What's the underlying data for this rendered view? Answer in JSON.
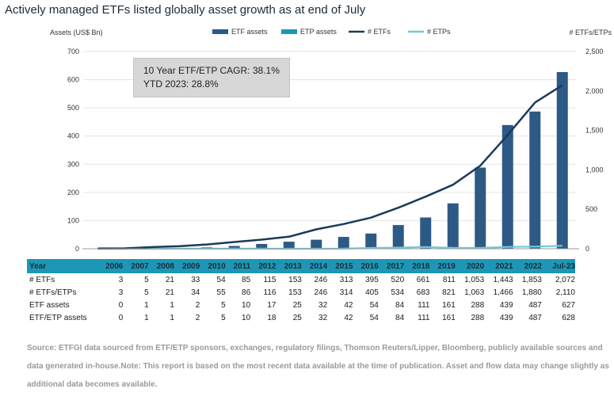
{
  "title": "Actively managed ETFs listed globally asset growth as at end of July",
  "cagr_box": {
    "line1": "10 Year ETF/ETP CAGR: 38.1%",
    "line2": "YTD 2023: 28.8%"
  },
  "chart_data": {
    "type": "bar",
    "categories": [
      "2006",
      "2007",
      "2008",
      "2009",
      "2010",
      "2011",
      "2012",
      "2013",
      "2014",
      "2015",
      "2016",
      "2017",
      "2018",
      "2019",
      "2020",
      "2021",
      "2022",
      "Jul-23"
    ],
    "ylabel_left": "Assets (US$ Bn)",
    "ylabel_right": "# ETFs/ETPs",
    "ylim_left": [
      0,
      700
    ],
    "yticks_left": [
      0,
      100,
      200,
      300,
      400,
      500,
      600,
      700
    ],
    "ylim_right": [
      0,
      2500
    ],
    "yticks_right": [
      0,
      500,
      1000,
      1500,
      2000,
      2500
    ],
    "ytick_labels_right": [
      "0",
      "500",
      "1,000",
      "1,500",
      "2,000",
      "2,500"
    ],
    "grid": true,
    "legend_position": "top",
    "series": [
      {
        "name": "ETF assets",
        "kind": "bar",
        "axis": "left",
        "color": "#2d5986",
        "values": [
          0,
          1,
          1,
          2,
          5,
          10,
          17,
          25,
          32,
          42,
          54,
          84,
          111,
          161,
          288,
          439,
          487,
          627
        ]
      },
      {
        "name": "ETP assets",
        "kind": "bar",
        "axis": "left",
        "color": "#1d97b5",
        "values": [
          0,
          0,
          0,
          0,
          0,
          0,
          1,
          0,
          0,
          0,
          0,
          0,
          0,
          0,
          0,
          0,
          0,
          1
        ]
      },
      {
        "name": "# ETFs",
        "kind": "line",
        "axis": "right",
        "color": "#1c3a5a",
        "values": [
          3,
          5,
          21,
          33,
          54,
          85,
          115,
          153,
          246,
          313,
          395,
          520,
          661,
          811,
          1053,
          1443,
          1853,
          2072
        ]
      },
      {
        "name": "# ETPs",
        "kind": "line",
        "axis": "right",
        "color": "#6fc9d8",
        "values": [
          0,
          0,
          0,
          1,
          1,
          1,
          1,
          0,
          0,
          1,
          10,
          14,
          22,
          10,
          10,
          23,
          27,
          38
        ]
      }
    ]
  },
  "table": {
    "header_label": "Year",
    "years": [
      "2006",
      "2007",
      "2008",
      "2009",
      "2010",
      "2011",
      "2012",
      "2013",
      "2014",
      "2015",
      "2016",
      "2017",
      "2018",
      "2019",
      "2020",
      "2021",
      "2022",
      "Jul-23"
    ],
    "rows": [
      {
        "label": "# ETFs",
        "values": [
          "3",
          "5",
          "21",
          "33",
          "54",
          "85",
          "115",
          "153",
          "246",
          "313",
          "395",
          "520",
          "661",
          "811",
          "1,053",
          "1,443",
          "1,853",
          "2,072"
        ]
      },
      {
        "label": "# ETFs/ETPs",
        "values": [
          "3",
          "5",
          "21",
          "34",
          "55",
          "86",
          "116",
          "153",
          "246",
          "314",
          "405",
          "534",
          "683",
          "821",
          "1,063",
          "1,466",
          "1,880",
          "2,110"
        ]
      },
      {
        "label": "ETF assets",
        "values": [
          "0",
          "1",
          "1",
          "2",
          "5",
          "10",
          "17",
          "25",
          "32",
          "42",
          "54",
          "84",
          "111",
          "161",
          "288",
          "439",
          "487",
          "627"
        ]
      },
      {
        "label": "ETF/ETP assets",
        "values": [
          "0",
          "1",
          "1",
          "2",
          "5",
          "10",
          "18",
          "25",
          "32",
          "42",
          "54",
          "84",
          "111",
          "161",
          "288",
          "439",
          "487",
          "628"
        ]
      }
    ]
  },
  "source_text": "Source: ETFGI data sourced from ETF/ETP sponsors, exchanges, regulatory filings, Thomson Reuters/Lipper, Bloomberg, publicly available sources and data generated in-house.Note: This report is based on the most recent data available at the time of publication. Asset and flow data may change slightly as additional data becomes available."
}
